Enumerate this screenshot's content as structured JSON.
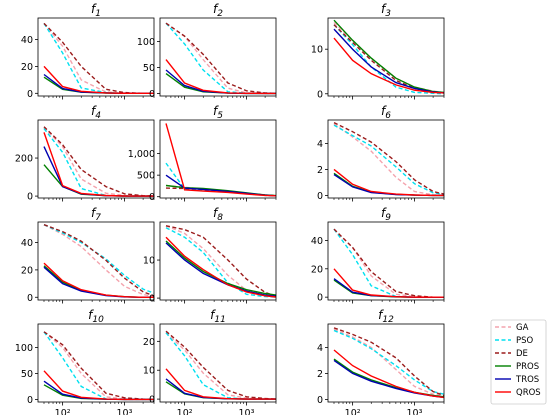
{
  "chart_data": {
    "type": "line",
    "xscale": "log",
    "xlim": [
      40,
      3000
    ],
    "x": [
      50,
      100,
      200,
      500,
      1000,
      2000,
      3000
    ],
    "x_tick_labels": [
      "10²",
      "10³"
    ],
    "legend": {
      "placement": "bottom-right",
      "entries": [
        {
          "name": "GA",
          "color": "#f4a3ad",
          "dash": "dashed"
        },
        {
          "name": "PSO",
          "color": "#00e0f0",
          "dash": "dashed"
        },
        {
          "name": "DE",
          "color": "#9b1c1c",
          "dash": "dashed"
        },
        {
          "name": "PROS",
          "color": "#008000",
          "dash": "solid"
        },
        {
          "name": "TROS",
          "color": "#0000b0",
          "dash": "solid"
        },
        {
          "name": "QROS",
          "color": "#ff0000",
          "dash": "solid"
        }
      ]
    },
    "panels": [
      {
        "title": "f",
        "sub": "1",
        "ylim": [
          -2,
          56
        ],
        "yticks": [
          0,
          20,
          40
        ],
        "ytick_labels": [
          "0",
          "20",
          "40"
        ],
        "series": {
          "GA": [
            52,
            35,
            10,
            1,
            0.2,
            0,
            0
          ],
          "PSO": [
            52,
            30,
            4,
            0.5,
            0,
            0,
            0
          ],
          "DE": [
            52,
            38,
            20,
            3,
            0.5,
            0,
            0
          ],
          "PROS": [
            12,
            3,
            0.8,
            0.2,
            0,
            0,
            0
          ],
          "TROS": [
            14,
            3.5,
            1,
            0.3,
            0,
            0,
            0
          ],
          "QROS": [
            20,
            5,
            1.5,
            0.3,
            0,
            0,
            0
          ]
        }
      },
      {
        "title": "f",
        "sub": "2",
        "ylim": [
          -5,
          145
        ],
        "yticks": [
          0,
          50,
          100
        ],
        "ytick_labels": [
          "0",
          "50",
          "100"
        ],
        "series": {
          "GA": [
            135,
            110,
            65,
            10,
            1,
            0,
            0
          ],
          "PSO": [
            135,
            95,
            45,
            3,
            0.5,
            0,
            0
          ],
          "DE": [
            135,
            110,
            75,
            20,
            5,
            1,
            0
          ],
          "PROS": [
            38,
            12,
            3,
            0.5,
            0,
            0,
            0
          ],
          "TROS": [
            45,
            15,
            4,
            0.5,
            0,
            0,
            0
          ],
          "QROS": [
            65,
            20,
            6,
            1,
            0.2,
            0,
            0
          ]
        }
      },
      {
        "title": "f",
        "sub": "3",
        "ylim": [
          -0.5,
          17
        ],
        "yticks": [
          0,
          10
        ],
        "ytick_labels": [
          "0",
          "10"
        ],
        "series": {
          "GA": [
            16,
            12,
            8,
            3.5,
            1.5,
            0.6,
            0.3
          ],
          "PSO": [
            15.5,
            11,
            6,
            1.5,
            0.3,
            0.1,
            0
          ],
          "DE": [
            15.5,
            11.5,
            7.5,
            3,
            1.2,
            0.4,
            0.2
          ],
          "PROS": [
            16.5,
            12,
            8,
            3.5,
            1.5,
            0.5,
            0.3
          ],
          "TROS": [
            14.5,
            10,
            6,
            2.5,
            1.2,
            0.4,
            0.2
          ],
          "QROS": [
            12.5,
            7.5,
            4.5,
            2,
            0.8,
            0.3,
            0.2
          ]
        }
      },
      {
        "title": "f",
        "sub": "4",
        "ylim": [
          -10,
          400
        ],
        "yticks": [
          0,
          200
        ],
        "ytick_labels": [
          "0",
          "200"
        ],
        "series": {
          "GA": [
            360,
            260,
            90,
            15,
            3,
            0,
            0
          ],
          "PSO": [
            355,
            230,
            40,
            3,
            0,
            0,
            0
          ],
          "DE": [
            365,
            270,
            140,
            50,
            12,
            2,
            0
          ],
          "PROS": [
            165,
            50,
            10,
            2,
            0,
            0,
            0
          ],
          "TROS": [
            260,
            50,
            12,
            2,
            0,
            0,
            0
          ],
          "QROS": [
            335,
            55,
            14,
            3,
            0.5,
            0,
            0
          ]
        }
      },
      {
        "title": "f",
        "sub": "5",
        "ylim": [
          -30,
          1780
        ],
        "yticks": [
          0,
          500,
          1000
        ],
        "ytick_labels": [
          "0",
          "500",
          "1,000"
        ],
        "series": {
          "GA": [
            260,
            220,
            180,
            120,
            70,
            30,
            20
          ],
          "PSO": [
            780,
            180,
            150,
            110,
            70,
            30,
            20
          ],
          "DE": [
            200,
            190,
            170,
            120,
            80,
            40,
            25
          ],
          "PROS": [
            260,
            210,
            190,
            140,
            90,
            40,
            25
          ],
          "TROS": [
            500,
            200,
            170,
            120,
            80,
            35,
            20
          ],
          "QROS": [
            1700,
            160,
            130,
            100,
            60,
            30,
            20
          ]
        }
      },
      {
        "title": "f",
        "sub": "6",
        "ylim": [
          -0.2,
          5.8
        ],
        "yticks": [
          0,
          2,
          4
        ],
        "ytick_labels": [
          "0",
          "2",
          "4"
        ],
        "series": {
          "GA": [
            5.5,
            4.5,
            3.4,
            1.4,
            0.3,
            0.05,
            0
          ],
          "PSO": [
            5.4,
            4.6,
            3.8,
            2.2,
            0.9,
            0.2,
            0.1
          ],
          "DE": [
            5.6,
            4.9,
            4.1,
            2.6,
            1.2,
            0.3,
            0.1
          ],
          "PROS": [
            1.7,
            0.7,
            0.25,
            0.08,
            0.02,
            0,
            0
          ],
          "TROS": [
            1.6,
            0.65,
            0.22,
            0.07,
            0.02,
            0,
            0
          ],
          "QROS": [
            2.0,
            0.85,
            0.3,
            0.1,
            0.03,
            0,
            0
          ]
        }
      },
      {
        "title": "f",
        "sub": "7",
        "ylim": [
          -2,
          55
        ],
        "yticks": [
          0,
          20,
          40
        ],
        "ytick_labels": [
          "0",
          "20",
          "40"
        ],
        "series": {
          "GA": [
            53,
            46,
            37,
            20,
            8,
            2,
            0.5
          ],
          "PSO": [
            53,
            47,
            40,
            28,
            16,
            6,
            3
          ],
          "DE": [
            53,
            48,
            41,
            27,
            14,
            4,
            1
          ],
          "PROS": [
            23,
            11,
            5,
            1.5,
            0.4,
            0,
            0
          ],
          "TROS": [
            22,
            10,
            4.5,
            1.3,
            0.3,
            0,
            0
          ],
          "QROS": [
            25,
            12,
            5.5,
            1.6,
            0.4,
            0,
            0
          ]
        }
      },
      {
        "title": "f",
        "sub": "8",
        "ylim": [
          -0.5,
          20
        ],
        "yticks": [
          0,
          10
        ],
        "ytick_labels": [
          "0",
          "10"
        ],
        "series": {
          "GA": [
            19,
            17,
            13,
            6,
            2,
            0.5,
            0.2
          ],
          "PSO": [
            18.5,
            16,
            12,
            4,
            1,
            0.4,
            0.3
          ],
          "DE": [
            19,
            18,
            16,
            10,
            5,
            1.5,
            0.5
          ],
          "PROS": [
            15,
            10.5,
            7,
            3.8,
            2.2,
            1.2,
            0.8
          ],
          "TROS": [
            14.5,
            10,
            6.5,
            3.5,
            1.8,
            0.8,
            0.5
          ],
          "QROS": [
            16,
            11,
            7.5,
            3.5,
            1.6,
            0.6,
            0.3
          ]
        }
      },
      {
        "title": "f",
        "sub": "9",
        "ylim": [
          -2,
          53
        ],
        "yticks": [
          0,
          20,
          40
        ],
        "ytick_labels": [
          "0",
          "20",
          "40"
        ],
        "series": {
          "GA": [
            48,
            35,
            15,
            2,
            0.5,
            0,
            0
          ],
          "PSO": [
            48,
            30,
            8,
            0.5,
            0,
            0,
            0
          ],
          "DE": [
            48,
            35,
            18,
            4,
            1,
            0,
            0
          ],
          "PROS": [
            12,
            3,
            1,
            0.2,
            0,
            0,
            0
          ],
          "TROS": [
            13,
            3.5,
            1.2,
            0.3,
            0,
            0,
            0
          ],
          "QROS": [
            20,
            5,
            1.5,
            0.3,
            0,
            0,
            0
          ]
        }
      },
      {
        "title": "f",
        "sub": "10",
        "ylim": [
          -5,
          145
        ],
        "yticks": [
          0,
          50,
          100
        ],
        "ytick_labels": [
          "0",
          "50",
          "100"
        ],
        "series": {
          "GA": [
            130,
            100,
            50,
            5,
            0.5,
            0,
            0
          ],
          "PSO": [
            130,
            80,
            25,
            1,
            0,
            0,
            0
          ],
          "DE": [
            130,
            105,
            60,
            12,
            3,
            0.5,
            0
          ],
          "PROS": [
            28,
            8,
            2,
            0.3,
            0,
            0,
            0
          ],
          "TROS": [
            35,
            10,
            2.5,
            0.4,
            0,
            0,
            0
          ],
          "QROS": [
            55,
            16,
            4,
            0.6,
            0,
            0,
            0
          ]
        }
      },
      {
        "title": "f",
        "sub": "11",
        "ylim": [
          -1,
          26
        ],
        "yticks": [
          0,
          10,
          20
        ],
        "ytick_labels": [
          "0",
          "10",
          "20"
        ],
        "series": {
          "GA": [
            23,
            17,
            9,
            1.5,
            0.3,
            0,
            0
          ],
          "PSO": [
            23,
            15,
            5,
            0.5,
            0,
            0,
            0
          ],
          "DE": [
            23.5,
            18,
            11,
            3,
            0.8,
            0.2,
            0
          ],
          "PROS": [
            6,
            1.8,
            0.5,
            0.1,
            0,
            0,
            0
          ],
          "TROS": [
            7,
            2,
            0.6,
            0.1,
            0,
            0,
            0
          ],
          "QROS": [
            10.5,
            3,
            0.8,
            0.15,
            0,
            0,
            0
          ]
        }
      },
      {
        "title": "f",
        "sub": "12",
        "ylim": [
          -0.2,
          5.8
        ],
        "yticks": [
          0,
          2,
          4
        ],
        "ytick_labels": [
          "0",
          "2",
          "4"
        ],
        "series": {
          "GA": [
            5.4,
            4.8,
            4,
            2.3,
            1,
            0.4,
            0.3
          ],
          "PSO": [
            5.3,
            4.7,
            3.9,
            2.6,
            1.5,
            0.6,
            0.4
          ],
          "DE": [
            5.5,
            5,
            4.4,
            3.2,
            1.8,
            0.6,
            0.3
          ],
          "PROS": [
            3.1,
            2.1,
            1.5,
            0.9,
            0.55,
            0.3,
            0.2
          ],
          "TROS": [
            3.0,
            2.0,
            1.4,
            0.85,
            0.5,
            0.25,
            0.15
          ],
          "QROS": [
            3.8,
            2.6,
            1.8,
            1.0,
            0.55,
            0.25,
            0.15
          ]
        }
      }
    ]
  }
}
